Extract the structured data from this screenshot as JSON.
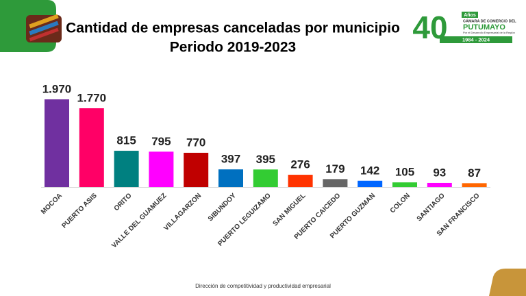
{
  "chart_data": {
    "type": "bar",
    "title": "Cantidad de empresas canceladas por municipio",
    "subtitle": "Periodo 2019-2023",
    "categories": [
      "MOCOA",
      "PUERTO ASIS",
      "ORITO",
      "VALLE DEL GUAMUEZ",
      "VILLAGARZON",
      "SIBUNDOY",
      "PUERTO LEGUIZAMO",
      "SAN MIGUEL",
      "PUERTO CAICEDO",
      "PUERTO GUZMAN",
      "COLON",
      "SANTIAGO",
      "SAN FRANCISCO"
    ],
    "values": [
      1970,
      1770,
      815,
      795,
      770,
      397,
      395,
      276,
      179,
      142,
      105,
      93,
      87
    ],
    "value_labels": [
      "1.970",
      "1.770",
      "815",
      "795",
      "770",
      "397",
      "395",
      "276",
      "179",
      "142",
      "105",
      "93",
      "87"
    ],
    "colors": [
      "#7030a0",
      "#ff0066",
      "#008080",
      "#ff00ff",
      "#c00000",
      "#0070c0",
      "#33cc33",
      "#ff3300",
      "#666666",
      "#0066ff",
      "#33cc33",
      "#ff00ff",
      "#ff6600"
    ]
  },
  "logo": {
    "number": "40",
    "years": "Años",
    "line1": "CÁMARA DE COMERCIO DEL",
    "name": "PUTUMAYO",
    "tagline": "Por el Desarrollo Empresarial de la Región",
    "period": "1984 - 2024"
  },
  "footer": "Dirección de competitividad y productividad empresarial"
}
